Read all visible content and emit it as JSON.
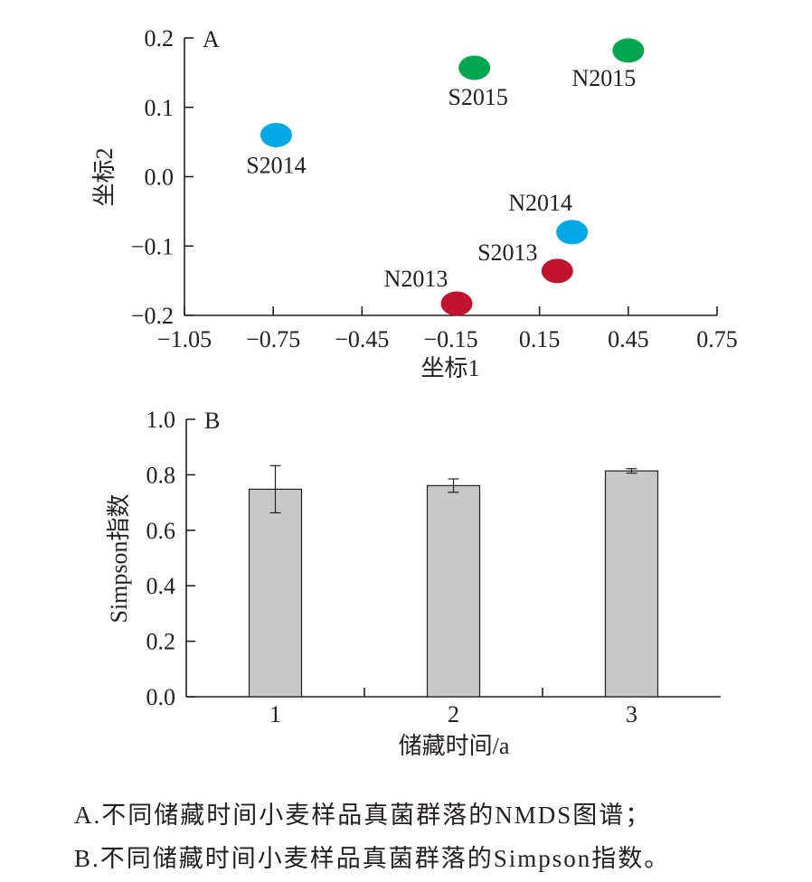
{
  "chart_data": [
    {
      "type": "scatter",
      "panel_label": "A",
      "xlabel": "坐标1",
      "ylabel": "坐标2",
      "xlim": [
        -1.05,
        0.75
      ],
      "ylim": [
        -0.2,
        0.2
      ],
      "x_ticks": [
        -1.05,
        -0.75,
        -0.45,
        -0.15,
        0.15,
        0.45,
        0.75
      ],
      "x_tick_labels": [
        "−1.05",
        "−0.75",
        "−0.45",
        "−0.15",
        "0.15",
        "0.45",
        "0.75"
      ],
      "y_ticks": [
        0.2,
        0.1,
        0.0,
        -0.1,
        -0.2
      ],
      "y_tick_labels": [
        "0.2",
        "0.1",
        "0.0",
        "−0.1",
        "−0.2"
      ],
      "grid": false,
      "points": [
        {
          "label": "S2014",
          "x": -0.74,
          "y": 0.06,
          "color": "#00a8e6"
        },
        {
          "label": "S2015",
          "x": -0.07,
          "y": 0.157,
          "color": "#00a650"
        },
        {
          "label": "N2015",
          "x": 0.45,
          "y": 0.182,
          "color": "#00a650"
        },
        {
          "label": "N2014",
          "x": 0.26,
          "y": -0.08,
          "color": "#00a8e6"
        },
        {
          "label": "S2013",
          "x": 0.21,
          "y": -0.136,
          "color": "#c1132d"
        },
        {
          "label": "N2013",
          "x": -0.13,
          "y": -0.183,
          "color": "#c1132d"
        }
      ]
    },
    {
      "type": "bar",
      "panel_label": "B",
      "xlabel": "储藏时间/a",
      "ylabel": "Simpson指数",
      "ylim": [
        0,
        1.0
      ],
      "y_ticks": [
        0.0,
        0.2,
        0.4,
        0.6,
        0.8,
        1.0
      ],
      "y_tick_labels": [
        "0.0",
        "0.2",
        "0.4",
        "0.6",
        "0.8",
        "1.0"
      ],
      "categories": [
        "1",
        "2",
        "3"
      ],
      "values": [
        0.748,
        0.761,
        0.814
      ],
      "errors": [
        0.085,
        0.024,
        0.008
      ],
      "bar_color": "#c8c8c8",
      "grid": false
    }
  ],
  "caption": {
    "line_a": "A.不同储藏时间小麦样品真菌群落的NMDS图谱；",
    "line_b": "B.不同储藏时间小麦样品真菌群落的Simpson指数。"
  }
}
